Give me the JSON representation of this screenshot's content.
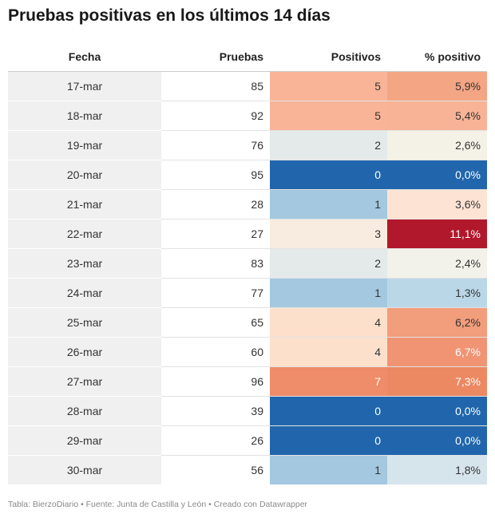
{
  "title": "Pruebas positivas en los últimos 14 días",
  "footer": "Tabla: BierzoDiario • Fuente: Junta de Castilla y León • Creado con Datawrapper",
  "chart_data": {
    "type": "table",
    "title": "Pruebas positivas en los últimos 14 días",
    "columns": [
      "Fecha",
      "Pruebas",
      "Positivos",
      "% positivo"
    ],
    "rows": [
      {
        "fecha": "17-mar",
        "pruebas": "85",
        "positivos": "5",
        "pct": "5,9%",
        "pos_bg": "#f9b497",
        "pct_bg": "#f4a583",
        "pos_fg": "#333333",
        "pct_fg": "#333333"
      },
      {
        "fecha": "18-mar",
        "pruebas": "92",
        "positivos": "5",
        "pct": "5,4%",
        "pos_bg": "#f9b497",
        "pct_bg": "#f8b396",
        "pos_fg": "#333333",
        "pct_fg": "#333333"
      },
      {
        "fecha": "19-mar",
        "pruebas": "76",
        "positivos": "2",
        "pct": "2,6%",
        "pos_bg": "#e4eaea",
        "pct_bg": "#f4f1e6",
        "pos_fg": "#333333",
        "pct_fg": "#333333"
      },
      {
        "fecha": "20-mar",
        "pruebas": "95",
        "positivos": "0",
        "pct": "0,0%",
        "pos_bg": "#2166ac",
        "pct_bg": "#2166ac",
        "pos_fg": "#ffffff",
        "pct_fg": "#ffffff"
      },
      {
        "fecha": "21-mar",
        "pruebas": "28",
        "positivos": "1",
        "pct": "3,6%",
        "pos_bg": "#a3c8e0",
        "pct_bg": "#fde3d3",
        "pos_fg": "#333333",
        "pct_fg": "#333333"
      },
      {
        "fecha": "22-mar",
        "pruebas": "27",
        "positivos": "3",
        "pct": "11,1%",
        "pos_bg": "#f8ece0",
        "pct_bg": "#b2182b",
        "pos_fg": "#333333",
        "pct_fg": "#ffffff"
      },
      {
        "fecha": "23-mar",
        "pruebas": "83",
        "positivos": "2",
        "pct": "2,4%",
        "pos_bg": "#e4eaea",
        "pct_bg": "#f2f2ea",
        "pos_fg": "#333333",
        "pct_fg": "#333333"
      },
      {
        "fecha": "24-mar",
        "pruebas": "77",
        "positivos": "1",
        "pct": "1,3%",
        "pos_bg": "#a3c8e0",
        "pct_bg": "#bad7e8",
        "pos_fg": "#333333",
        "pct_fg": "#333333"
      },
      {
        "fecha": "25-mar",
        "pruebas": "65",
        "positivos": "4",
        "pct": "6,2%",
        "pos_bg": "#fde0cc",
        "pct_bg": "#f29d7b",
        "pos_fg": "#333333",
        "pct_fg": "#333333"
      },
      {
        "fecha": "26-mar",
        "pruebas": "60",
        "positivos": "4",
        "pct": "6,7%",
        "pos_bg": "#fde0cc",
        "pct_bg": "#f09474",
        "pos_fg": "#333333",
        "pct_fg": "#ffffff"
      },
      {
        "fecha": "27-mar",
        "pruebas": "96",
        "positivos": "7",
        "pct": "7,3%",
        "pos_bg": "#ef8c69",
        "pct_bg": "#ec8862",
        "pos_fg": "#ffffff",
        "pct_fg": "#ffffff"
      },
      {
        "fecha": "28-mar",
        "pruebas": "39",
        "positivos": "0",
        "pct": "0,0%",
        "pos_bg": "#2166ac",
        "pct_bg": "#2166ac",
        "pos_fg": "#ffffff",
        "pct_fg": "#ffffff"
      },
      {
        "fecha": "29-mar",
        "pruebas": "26",
        "positivos": "0",
        "pct": "0,0%",
        "pos_bg": "#2166ac",
        "pct_bg": "#2166ac",
        "pos_fg": "#ffffff",
        "pct_fg": "#ffffff"
      },
      {
        "fecha": "30-mar",
        "pruebas": "56",
        "positivos": "1",
        "pct": "1,8%",
        "pos_bg": "#a3c8e0",
        "pct_bg": "#d6e4ec",
        "pos_fg": "#333333",
        "pct_fg": "#333333"
      }
    ]
  }
}
